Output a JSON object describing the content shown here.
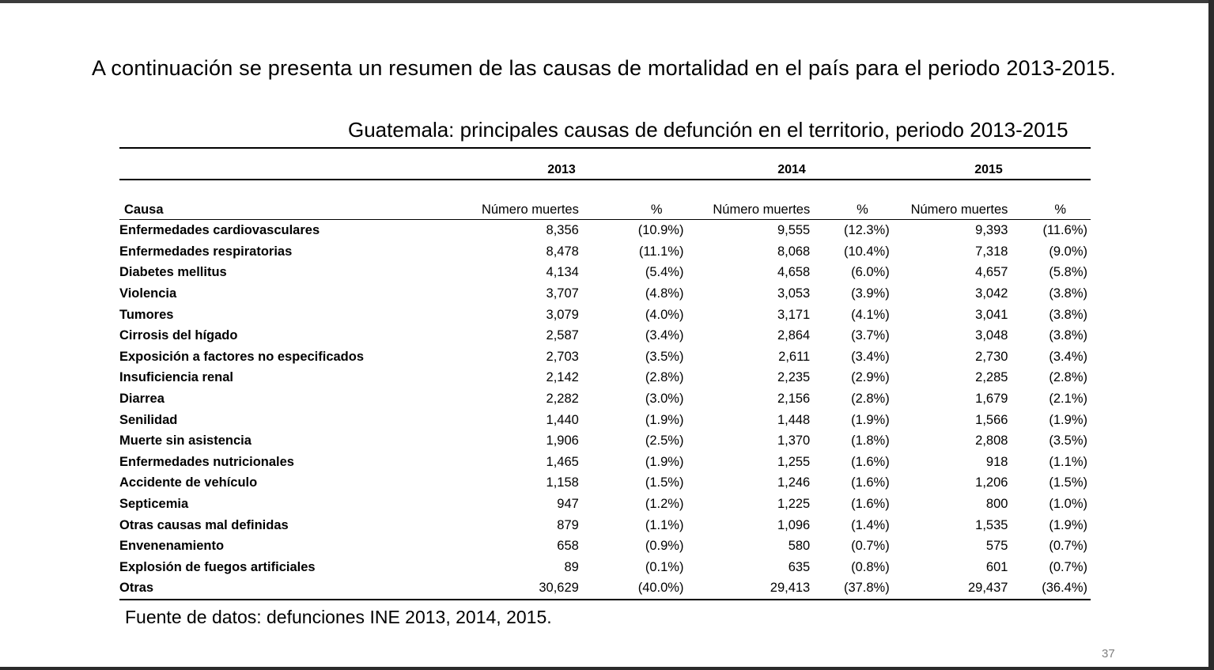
{
  "intro_text": "A continuación se presenta un resumen de las causas de mortalidad  en el país para el periodo 2013-2015.",
  "table": {
    "title": "Guatemala: principales causas de defunción en el territorio, periodo 2013-2015",
    "years": [
      "2013",
      "2014",
      "2015"
    ],
    "headers": {
      "cause": "Causa",
      "count": "Número muertes",
      "percent": "%"
    },
    "rows": [
      {
        "cause": "Enfermedades cardiovasculares",
        "v2013": "8,356",
        "p2013": "(10.9%)",
        "v2014": "9,555",
        "p2014": "(12.3%)",
        "v2015": "9,393",
        "p2015": "(11.6%)"
      },
      {
        "cause": "Enfermedades respiratorias",
        "v2013": "8,478",
        "p2013": "(11.1%)",
        "v2014": "8,068",
        "p2014": "(10.4%)",
        "v2015": "7,318",
        "p2015": "(9.0%)"
      },
      {
        "cause": "Diabetes mellitus",
        "v2013": "4,134",
        "p2013": "(5.4%)",
        "v2014": "4,658",
        "p2014": "(6.0%)",
        "v2015": "4,657",
        "p2015": "(5.8%)"
      },
      {
        "cause": "Violencia",
        "v2013": "3,707",
        "p2013": "(4.8%)",
        "v2014": "3,053",
        "p2014": "(3.9%)",
        "v2015": "3,042",
        "p2015": "(3.8%)"
      },
      {
        "cause": "Tumores",
        "v2013": "3,079",
        "p2013": "(4.0%)",
        "v2014": "3,171",
        "p2014": "(4.1%)",
        "v2015": "3,041",
        "p2015": "(3.8%)"
      },
      {
        "cause": "Cirrosis del hígado",
        "v2013": "2,587",
        "p2013": "(3.4%)",
        "v2014": "2,864",
        "p2014": "(3.7%)",
        "v2015": "3,048",
        "p2015": "(3.8%)"
      },
      {
        "cause": "Exposición a factores no especificados",
        "v2013": "2,703",
        "p2013": "(3.5%)",
        "v2014": "2,611",
        "p2014": "(3.4%)",
        "v2015": "2,730",
        "p2015": "(3.4%)"
      },
      {
        "cause": "Insuficiencia renal",
        "v2013": "2,142",
        "p2013": "(2.8%)",
        "v2014": "2,235",
        "p2014": "(2.9%)",
        "v2015": "2,285",
        "p2015": "(2.8%)"
      },
      {
        "cause": "Diarrea",
        "v2013": "2,282",
        "p2013": "(3.0%)",
        "v2014": "2,156",
        "p2014": "(2.8%)",
        "v2015": "1,679",
        "p2015": "(2.1%)"
      },
      {
        "cause": "Senilidad",
        "v2013": "1,440",
        "p2013": "(1.9%)",
        "v2014": "1,448",
        "p2014": "(1.9%)",
        "v2015": "1,566",
        "p2015": "(1.9%)"
      },
      {
        "cause": "Muerte sin asistencia",
        "v2013": "1,906",
        "p2013": "(2.5%)",
        "v2014": "1,370",
        "p2014": "(1.8%)",
        "v2015": "2,808",
        "p2015": "(3.5%)"
      },
      {
        "cause": "Enfermedades nutricionales",
        "v2013": "1,465",
        "p2013": "(1.9%)",
        "v2014": "1,255",
        "p2014": "(1.6%)",
        "v2015": "918",
        "p2015": "(1.1%)"
      },
      {
        "cause": "Accidente de vehículo",
        "v2013": "1,158",
        "p2013": "(1.5%)",
        "v2014": "1,246",
        "p2014": "(1.6%)",
        "v2015": "1,206",
        "p2015": "(1.5%)"
      },
      {
        "cause": "Septicemia",
        "v2013": "947",
        "p2013": "(1.2%)",
        "v2014": "1,225",
        "p2014": "(1.6%)",
        "v2015": "800",
        "p2015": "(1.0%)"
      },
      {
        "cause": "Otras causas mal definidas",
        "v2013": "879",
        "p2013": "(1.1%)",
        "v2014": "1,096",
        "p2014": "(1.4%)",
        "v2015": "1,535",
        "p2015": "(1.9%)"
      },
      {
        "cause": "Envenenamiento",
        "v2013": "658",
        "p2013": "(0.9%)",
        "v2014": "580",
        "p2014": "(0.7%)",
        "v2015": "575",
        "p2015": "(0.7%)"
      },
      {
        "cause": "Explosión de fuegos artificiales",
        "v2013": "89",
        "p2013": "(0.1%)",
        "v2014": "635",
        "p2014": "(0.8%)",
        "v2015": "601",
        "p2015": "(0.7%)"
      },
      {
        "cause": "Otras",
        "v2013": "30,629",
        "p2013": "(40.0%)",
        "v2014": "29,413",
        "p2014": "(37.8%)",
        "v2015": "29,437",
        "p2015": "(36.4%)"
      }
    ]
  },
  "source": "Fuente de datos: defunciones INE 2013, 2014, 2015.",
  "page_number": "37"
}
